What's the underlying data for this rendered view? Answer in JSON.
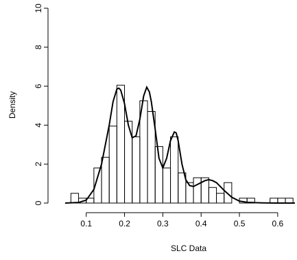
{
  "chart_data": {
    "type": "bar",
    "title": "",
    "xlabel": "SLC Data",
    "ylabel": "Density",
    "xlim": [
      0.045,
      0.645
    ],
    "ylim": [
      0,
      10
    ],
    "xticks": [
      "0.1",
      "0.2",
      "0.3",
      "0.4",
      "0.5",
      "0.6"
    ],
    "yticks": [
      "0",
      "2",
      "4",
      "6",
      "8",
      "10"
    ],
    "grid": false,
    "legend": "none",
    "histogram": {
      "bin_width": 0.02,
      "bins": [
        {
          "x0": 0.06,
          "x1": 0.08,
          "density": 0.5
        },
        {
          "x0": 0.08,
          "x1": 0.1,
          "density": 0.25
        },
        {
          "x0": 0.1,
          "x1": 0.12,
          "density": 0.25
        },
        {
          "x0": 0.12,
          "x1": 0.14,
          "density": 1.8
        },
        {
          "x0": 0.14,
          "x1": 0.16,
          "density": 2.35
        },
        {
          "x0": 0.16,
          "x1": 0.18,
          "density": 3.95
        },
        {
          "x0": 0.18,
          "x1": 0.2,
          "density": 6.05
        },
        {
          "x0": 0.2,
          "x1": 0.22,
          "density": 4.2
        },
        {
          "x0": 0.22,
          "x1": 0.24,
          "density": 3.4
        },
        {
          "x0": 0.24,
          "x1": 0.26,
          "density": 5.25
        },
        {
          "x0": 0.26,
          "x1": 0.28,
          "density": 4.7
        },
        {
          "x0": 0.28,
          "x1": 0.3,
          "density": 2.9
        },
        {
          "x0": 0.3,
          "x1": 0.32,
          "density": 1.8
        },
        {
          "x0": 0.32,
          "x1": 0.34,
          "density": 3.4
        },
        {
          "x0": 0.34,
          "x1": 0.36,
          "density": 1.55
        },
        {
          "x0": 0.36,
          "x1": 0.38,
          "density": 1.05
        },
        {
          "x0": 0.38,
          "x1": 0.4,
          "density": 1.3
        },
        {
          "x0": 0.4,
          "x1": 0.42,
          "density": 1.3
        },
        {
          "x0": 0.42,
          "x1": 0.44,
          "density": 0.8
        },
        {
          "x0": 0.44,
          "x1": 0.46,
          "density": 0.5
        },
        {
          "x0": 0.46,
          "x1": 0.48,
          "density": 1.05
        },
        {
          "x0": 0.48,
          "x1": 0.5,
          "density": 0
        },
        {
          "x0": 0.5,
          "x1": 0.52,
          "density": 0.25
        },
        {
          "x0": 0.52,
          "x1": 0.54,
          "density": 0.25
        },
        {
          "x0": 0.54,
          "x1": 0.56,
          "density": 0
        },
        {
          "x0": 0.56,
          "x1": 0.58,
          "density": 0
        },
        {
          "x0": 0.58,
          "x1": 0.6,
          "density": 0.25
        },
        {
          "x0": 0.6,
          "x1": 0.62,
          "density": 0.25
        },
        {
          "x0": 0.62,
          "x1": 0.64,
          "density": 0.25
        }
      ]
    },
    "density_curve": {
      "type": "line",
      "x": [
        0.045,
        0.08,
        0.1,
        0.12,
        0.14,
        0.16,
        0.17,
        0.18,
        0.185,
        0.19,
        0.2,
        0.21,
        0.22,
        0.23,
        0.24,
        0.25,
        0.258,
        0.265,
        0.27,
        0.28,
        0.29,
        0.3,
        0.31,
        0.32,
        0.33,
        0.335,
        0.34,
        0.35,
        0.36,
        0.37,
        0.38,
        0.39,
        0.4,
        0.41,
        0.42,
        0.43,
        0.44,
        0.45,
        0.46,
        0.48,
        0.5,
        0.52,
        0.54,
        0.56,
        0.6,
        0.645
      ],
      "y": [
        0.0,
        0.03,
        0.15,
        0.7,
        2.0,
        4.0,
        5.2,
        5.85,
        5.9,
        5.8,
        5.1,
        4.0,
        3.35,
        3.45,
        4.3,
        5.5,
        5.95,
        5.7,
        5.2,
        3.8,
        2.3,
        1.8,
        2.3,
        3.2,
        3.65,
        3.6,
        3.2,
        2.0,
        1.2,
        0.9,
        0.85,
        0.95,
        1.05,
        1.15,
        1.2,
        1.15,
        1.05,
        0.85,
        0.65,
        0.3,
        0.1,
        0.04,
        0.02,
        0.01,
        0.0,
        0.0
      ]
    }
  }
}
